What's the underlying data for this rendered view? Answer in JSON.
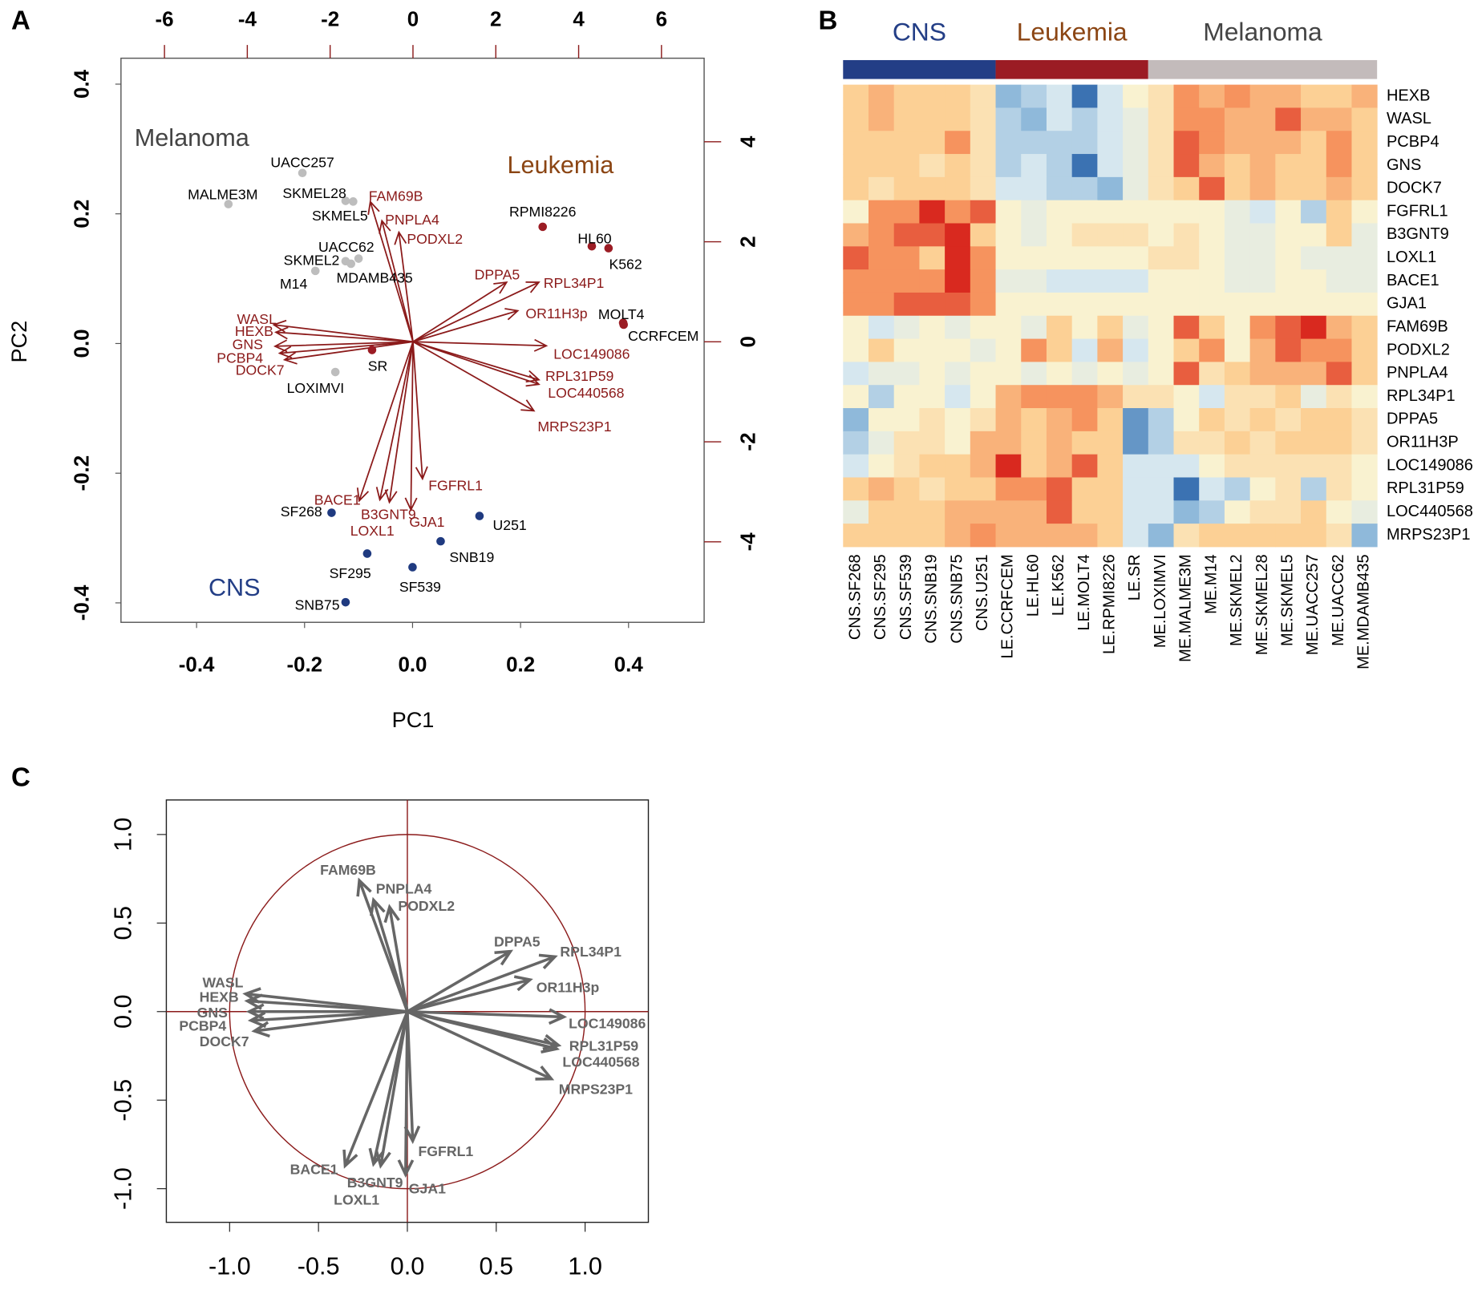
{
  "chart_data": [
    {
      "panel": "A",
      "type": "biplot",
      "xlabel": "PC1",
      "ylabel": "PC2",
      "xlim": [
        -0.54,
        0.54
      ],
      "ylim": [
        -0.43,
        0.44
      ],
      "xticks": [
        -0.4,
        -0.2,
        {
          "value": 0,
          "label": "0.0"
        },
        0.2,
        0.4
      ],
      "yticks": [
        -0.4,
        -0.2,
        {
          "value": 0,
          "label": "0.0"
        },
        0.2,
        0.4
      ],
      "x2lim": [
        -7.05,
        7.03
      ],
      "x2ticks": [
        -6,
        -4,
        -2,
        0,
        2,
        4,
        6
      ],
      "y2lim": [
        -5.61,
        5.67
      ],
      "y2ticks": [
        -4,
        -2,
        0,
        2,
        4
      ],
      "series": [
        {
          "name": "Melanoma",
          "color": "#bdbdbd",
          "text_color": "#444444",
          "labels": [
            "UACC257",
            "MALME3M",
            "SKMEL28",
            "SKMEL5",
            "UACC62",
            "SKMEL2",
            "M14",
            "MDAMB435",
            "LOXIMVI"
          ],
          "x": [
            -0.204,
            -0.341,
            -0.124,
            -0.11,
            -0.1,
            -0.124,
            -0.18,
            -0.114,
            -0.143
          ],
          "y": [
            0.263,
            0.215,
            0.22,
            0.219,
            0.131,
            0.127,
            0.112,
            0.123,
            -0.044
          ]
        },
        {
          "name": "Leukemia",
          "color": "#9b1c24",
          "text_color": "#8b4513",
          "labels": [
            "SR",
            "RPMI8226",
            "HL60",
            "K562",
            "MOLT4",
            "CCRFCEM"
          ],
          "x": [
            -0.075,
            0.241,
            0.332,
            0.363,
            0.39,
            0.391
          ],
          "y": [
            -0.01,
            0.18,
            0.15,
            0.147,
            0.032,
            0.029
          ]
        },
        {
          "name": "CNS",
          "color": "#1f3a80",
          "text_color": "#233e86",
          "labels": [
            "SF268",
            "U251",
            "SNB19",
            "SF295",
            "SF539",
            "SNB75"
          ],
          "x": [
            -0.15,
            0.124,
            0.052,
            -0.084,
            0.0,
            -0.124
          ],
          "y": [
            -0.261,
            -0.266,
            -0.305,
            -0.324,
            -0.345,
            -0.399
          ]
        }
      ],
      "arrows": {
        "axis": "y2",
        "color": "#8b1a1a",
        "labels": [
          "WASL",
          "HEXB",
          "GNS",
          "PCBP4",
          "DOCK7",
          "FAM69B",
          "PNPLA4",
          "PODXL2",
          "DPPA5",
          "RPL34P1",
          "OR11H3p",
          "LOC149086",
          "RPL31P59",
          "LOC440568",
          "MRPS23P1",
          "BACE1",
          "B3GNT9",
          "LOXL1",
          "GJA1",
          "FGFRL1"
        ],
        "x": [
          -3.36,
          -3.31,
          -3.33,
          -3.22,
          -3.1,
          -1.03,
          -0.75,
          -0.34,
          2.26,
          3.04,
          2.53,
          3.22,
          3.04,
          3.04,
          2.92,
          -1.3,
          -0.57,
          -0.8,
          -0.05,
          0.23
        ],
        "y": [
          0.34,
          0.19,
          -0.09,
          -0.23,
          -0.36,
          2.8,
          2.42,
          2.19,
          1.19,
          1.19,
          0.62,
          -0.08,
          -0.76,
          -0.85,
          -1.38,
          -3.18,
          -3.21,
          -3.16,
          -3.36,
          -2.74
        ]
      }
    },
    {
      "panel": "B",
      "type": "heatmap",
      "zlim": [
        -3,
        3
      ],
      "colorscale": [
        "#3b72b2",
        "#8fb9da",
        "#d6e7ef",
        "#f9f2d0",
        "#fcd095",
        "#f6935e",
        "#d9291f"
      ],
      "groups": [
        {
          "name": "CNS",
          "color": "#233e86",
          "text_color": "#233e86",
          "columns": [
            "CNS.SF268",
            "CNS.SF295",
            "CNS.SF539",
            "CNS.SNB19",
            "CNS.SNB75",
            "CNS.U251"
          ]
        },
        {
          "name": "Leukemia",
          "color": "#9b1c24",
          "text_color": "#8b4513",
          "columns": [
            "LE.CCRFCEM",
            "LE.HL60",
            "LE.K562",
            "LE.MOLT4",
            "LE.RPMI8226",
            "LE.SR"
          ]
        },
        {
          "name": "Melanoma",
          "color": "#c3bbbb",
          "text_color": "#444444",
          "columns": [
            "ME.LOXIMVI",
            "ME.MALME3M",
            "ME.M14",
            "ME.SKMEL2",
            "ME.SKMEL28",
            "ME.SKMEL5",
            "ME.UACC257",
            "ME.UACC62",
            "ME.MDAMB435"
          ]
        }
      ],
      "rows": [
        {
          "name": "HEXB",
          "values": [
            1,
            1.5,
            1,
            1,
            1,
            0.5,
            -2,
            -1.5,
            -1,
            -3,
            -1,
            0,
            0.5,
            2,
            1.5,
            2,
            1.5,
            1.5,
            1,
            1,
            1.5
          ]
        },
        {
          "name": "WASL",
          "values": [
            1,
            1.5,
            1,
            1,
            1,
            0.5,
            -1.5,
            -2,
            -1,
            -1.5,
            -1,
            -0.5,
            0.5,
            2,
            2,
            1.5,
            1.5,
            2.5,
            1.5,
            1.5,
            1
          ]
        },
        {
          "name": "PCBP4",
          "values": [
            1,
            1,
            1,
            1,
            2,
            0.5,
            -1.5,
            -1.5,
            -1.5,
            -1.5,
            -1,
            -0.5,
            0.5,
            2.5,
            2,
            1.5,
            1.5,
            1.5,
            1,
            2,
            1
          ]
        },
        {
          "name": "GNS",
          "values": [
            1,
            1,
            1,
            0.5,
            1,
            0.5,
            -1.5,
            -1,
            -1.5,
            -3,
            -1,
            -0.5,
            0.5,
            2.5,
            1.5,
            1,
            1.5,
            1,
            1,
            2,
            1
          ]
        },
        {
          "name": "DOCK7",
          "values": [
            1,
            0.5,
            1,
            1,
            1,
            0.5,
            -1,
            -1,
            -1.5,
            -1.5,
            -2,
            -0.5,
            0.5,
            1,
            2.5,
            1,
            1.5,
            1,
            1,
            1.5,
            1
          ]
        },
        {
          "name": "FGFRL1",
          "values": [
            0,
            2,
            2,
            3,
            2,
            2.5,
            0,
            -0.5,
            0,
            0,
            0,
            0,
            0,
            0,
            0,
            -0.5,
            -1,
            0,
            -1.5,
            1,
            0
          ]
        },
        {
          "name": "B3GNT9",
          "values": [
            1.5,
            2,
            2.5,
            2.5,
            3,
            1,
            0,
            -0.5,
            0,
            0.5,
            0.5,
            0.5,
            0,
            0.5,
            0,
            -0.5,
            -0.5,
            0,
            0,
            1,
            -0.5
          ]
        },
        {
          "name": "LOXL1",
          "values": [
            2.5,
            2,
            2,
            1,
            3,
            2,
            0,
            0,
            0,
            0,
            0,
            0,
            0.5,
            0.5,
            0,
            -0.5,
            -0.5,
            0,
            -0.5,
            -0.5,
            -0.5
          ]
        },
        {
          "name": "BACE1",
          "values": [
            2,
            2,
            2,
            2,
            3,
            2,
            -0.5,
            -0.5,
            -1,
            -1,
            -1,
            -1,
            0,
            0,
            0,
            -0.5,
            -0.5,
            0,
            0,
            -0.5,
            -0.5
          ]
        },
        {
          "name": "GJA1",
          "values": [
            2,
            2,
            2.5,
            2.5,
            2.5,
            2,
            0,
            0,
            0,
            0,
            0,
            0,
            0,
            0,
            0,
            0,
            0,
            0,
            0,
            0,
            0
          ]
        },
        {
          "name": "FAM69B",
          "values": [
            0,
            -1,
            -0.5,
            0,
            -0.5,
            0,
            0,
            -0.5,
            1,
            0,
            1,
            -0.5,
            0,
            2.5,
            1,
            0,
            2,
            2.5,
            3,
            1.5,
            1
          ]
        },
        {
          "name": "PODXL2",
          "values": [
            0,
            1,
            0,
            0,
            0,
            -0.5,
            0,
            2,
            1,
            -1,
            1.5,
            -1,
            0,
            1,
            2,
            0,
            1.5,
            2.5,
            2,
            2,
            1
          ]
        },
        {
          "name": "PNPLA4",
          "values": [
            -1,
            -0.5,
            -0.5,
            0,
            -0.5,
            0,
            0,
            -0.5,
            0,
            -0.5,
            0,
            -0.5,
            0,
            2.5,
            0.5,
            1,
            1.5,
            1.5,
            1.5,
            2.5,
            1
          ]
        },
        {
          "name": "RPL34P1",
          "values": [
            0,
            -1.5,
            0,
            0,
            -1,
            0,
            1.5,
            2,
            2,
            2,
            1.5,
            0.5,
            0.5,
            0,
            -1,
            0.5,
            0.5,
            1,
            -0.5,
            0.5,
            0
          ]
        },
        {
          "name": "DPPA5",
          "values": [
            -2,
            0,
            0,
            0.5,
            0,
            0.5,
            1.5,
            1,
            1.5,
            2,
            1,
            -2.5,
            -1.5,
            0,
            1,
            0.5,
            1,
            0.5,
            1,
            1,
            0.5
          ]
        },
        {
          "name": "OR11H3P",
          "values": [
            -1.5,
            -0.5,
            0.5,
            0.5,
            0,
            1.5,
            1.5,
            1,
            1.5,
            1,
            1,
            -2.5,
            -1.5,
            0.5,
            0.5,
            1,
            0.5,
            1,
            1,
            1,
            0.5
          ]
        },
        {
          "name": "LOC149086",
          "values": [
            -1,
            0,
            0.5,
            1,
            1,
            1.5,
            3,
            1,
            1.5,
            2.5,
            1,
            -1,
            -1,
            -1,
            0,
            0.5,
            0.5,
            0.5,
            0.5,
            0.5,
            0
          ]
        },
        {
          "name": "RPL31P59",
          "values": [
            1,
            1.5,
            1,
            0.5,
            1,
            1,
            2,
            2,
            2.5,
            1,
            1,
            -1,
            -1,
            -3,
            -1,
            -1.5,
            0,
            0.5,
            -1.5,
            0.5,
            0
          ]
        },
        {
          "name": "LOC440568",
          "values": [
            -0.5,
            1,
            1,
            1,
            1.5,
            1.5,
            1.5,
            1.5,
            2.5,
            1,
            1,
            -1,
            -1,
            -2,
            -1.5,
            0,
            0.5,
            0.5,
            1,
            0,
            -0.5
          ]
        },
        {
          "name": "MRPS23P1",
          "values": [
            1,
            1,
            1,
            1,
            1.5,
            2,
            1.5,
            1.5,
            1.5,
            1.5,
            1,
            -1,
            -2,
            0.5,
            1,
            1,
            1,
            1,
            1,
            0.5,
            -2
          ]
        }
      ]
    },
    {
      "panel": "C",
      "type": "correlation_circle",
      "xlim": [
        -1.356,
        1.356
      ],
      "ylim": [
        -1.19,
        1.195
      ],
      "xticks": [
        {
          "value": -1,
          "label": "-1.0"
        },
        -0.5,
        {
          "value": 0,
          "label": "0.0"
        },
        0.5,
        {
          "value": 1,
          "label": "1.0"
        }
      ],
      "yticks": [
        {
          "value": -1,
          "label": "-1.0"
        },
        -0.5,
        {
          "value": 0,
          "label": "0.0"
        },
        0.5,
        {
          "value": 1,
          "label": "1.0"
        }
      ],
      "circle_color": "#8b1a1a",
      "arrows": {
        "color": "#666666",
        "labels": [
          "WASL",
          "HEXB",
          "GNS",
          "PCBP4",
          "DOCK7",
          "FAM69B",
          "PNPLA4",
          "PODXL2",
          "DPPA5",
          "RPL34P1",
          "OR11H3p",
          "LOC149086",
          "RPL31P59",
          "LOC440568",
          "MRPS23P1",
          "BACE1",
          "B3GNT9",
          "LOXL1",
          "GJA1",
          "FGFRL1"
        ],
        "x": [
          -0.91,
          -0.9,
          -0.89,
          -0.88,
          -0.86,
          -0.27,
          -0.19,
          -0.1,
          0.58,
          0.83,
          0.69,
          0.88,
          0.85,
          0.84,
          0.81,
          -0.35,
          -0.15,
          -0.19,
          -0.01,
          0.03
        ],
        "y": [
          0.1,
          0.06,
          0.0,
          -0.05,
          -0.11,
          0.74,
          0.63,
          0.59,
          0.34,
          0.31,
          0.18,
          -0.03,
          -0.19,
          -0.21,
          -0.38,
          -0.87,
          -0.87,
          -0.86,
          -0.92,
          -0.73
        ]
      }
    }
  ]
}
